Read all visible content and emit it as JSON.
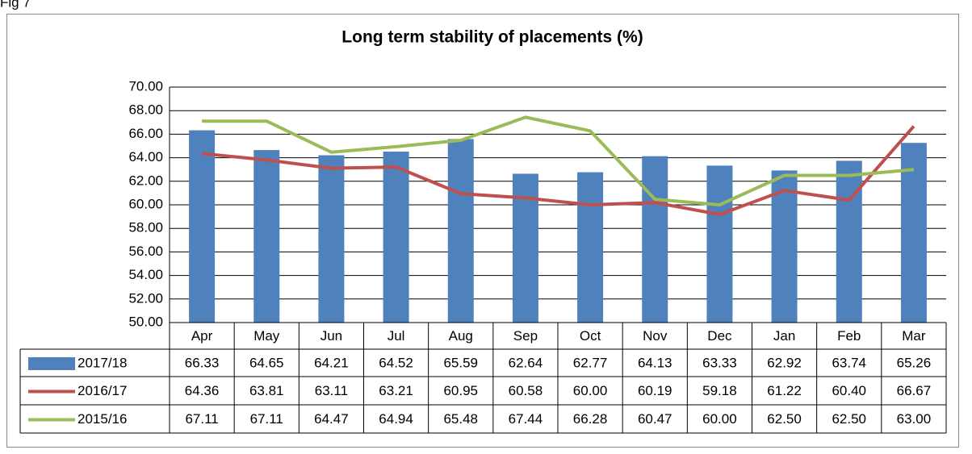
{
  "figure_label": "Fig 7",
  "chart_data": {
    "type": "bar_line",
    "title": "Long term stability of placements (%)",
    "categories": [
      "Apr",
      "May",
      "Jun",
      "Jul",
      "Aug",
      "Sep",
      "Oct",
      "Nov",
      "Dec",
      "Jan",
      "Feb",
      "Mar"
    ],
    "ylim": [
      50,
      70
    ],
    "yticks": [
      {
        "value": 50,
        "label": "50.00"
      },
      {
        "value": 52,
        "label": "52.00"
      },
      {
        "value": 54,
        "label": "54.00"
      },
      {
        "value": 56,
        "label": "56.00"
      },
      {
        "value": 58,
        "label": "58.00"
      },
      {
        "value": 60,
        "label": "60.00"
      },
      {
        "value": 62,
        "label": "62.00"
      },
      {
        "value": 64,
        "label": "64.00"
      },
      {
        "value": 66,
        "label": "66.00"
      },
      {
        "value": 68,
        "label": "68.00"
      },
      {
        "value": 70,
        "label": "70.00"
      }
    ],
    "grid": true,
    "series": [
      {
        "name": "2017/18",
        "type": "bar",
        "color": "#4f81bd",
        "values": [
          66.33,
          64.65,
          64.21,
          64.52,
          65.59,
          62.64,
          62.77,
          64.13,
          63.33,
          62.92,
          63.74,
          65.26
        ],
        "value_labels": [
          "66.33",
          "64.65",
          "64.21",
          "64.52",
          "65.59",
          "62.64",
          "62.77",
          "64.13",
          "63.33",
          "62.92",
          "63.74",
          "65.26"
        ]
      },
      {
        "name": "2016/17",
        "type": "line",
        "color": "#c0504d",
        "values": [
          64.36,
          63.81,
          63.11,
          63.21,
          60.95,
          60.58,
          60,
          60.19,
          59.18,
          61.22,
          60.4,
          66.67
        ],
        "value_labels": [
          "64.36",
          "63.81",
          "63.11",
          "63.21",
          "60.95",
          "60.58",
          "60.00",
          "60.19",
          "59.18",
          "61.22",
          "60.40",
          "66.67"
        ]
      },
      {
        "name": "2015/16",
        "type": "line",
        "color": "#9bbb59",
        "values": [
          67.11,
          67.11,
          64.47,
          64.94,
          65.48,
          67.44,
          66.28,
          60.47,
          60,
          62.5,
          62.5,
          63
        ],
        "value_labels": [
          "67.11",
          "67.11",
          "64.47",
          "64.94",
          "65.48",
          "67.44",
          "66.28",
          "60.47",
          "60.00",
          "62.50",
          "62.50",
          "63.00"
        ]
      }
    ]
  }
}
